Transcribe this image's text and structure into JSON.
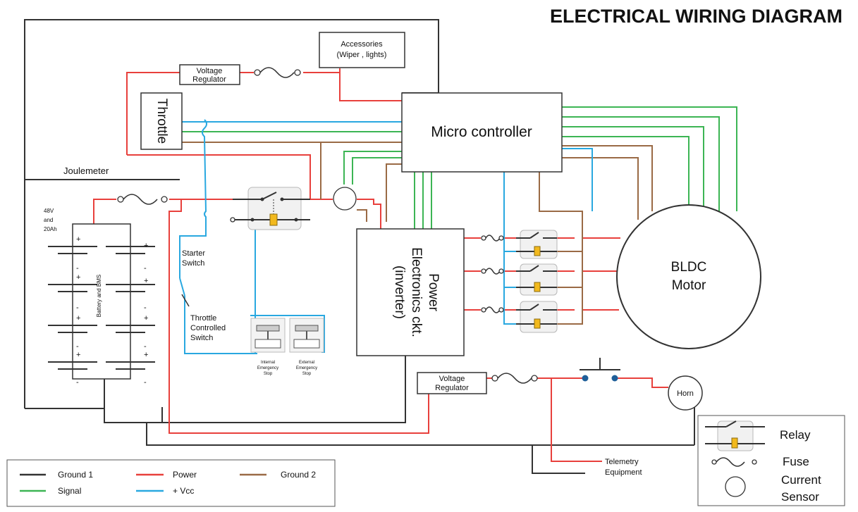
{
  "title": "ELECTRICAL WIRING DIAGRAM",
  "colors": {
    "ground1": "#333333",
    "power": "#e8403c",
    "ground2": "#9a6a45",
    "signal": "#3cb554",
    "vcc": "#29a8e0",
    "coil": "#f2b91d"
  },
  "components": {
    "accessories": [
      "Accessories",
      "(Wiper , lights)"
    ],
    "voltage_regulator_top": [
      "Voltage",
      "Regulator"
    ],
    "throttle": "Throttle",
    "microcontroller": "Micro controller",
    "joulemeter": "Joulemeter",
    "battery_spec": [
      "48V",
      "and",
      "20Ah"
    ],
    "battery_label": "Battery and BMS",
    "starter_switch": [
      "Starter",
      "Switch"
    ],
    "throttle_switch": [
      "Throttle",
      "Controlled",
      "Switch"
    ],
    "internal_stop": [
      "Internal",
      "Emergency",
      "Stop"
    ],
    "external_stop": [
      "External",
      "Emergency",
      "Stop"
    ],
    "power_electronics": [
      "Power",
      "Electronics ckt.",
      "(inverter)"
    ],
    "bldc": [
      "BLDC",
      "Motor"
    ],
    "voltage_regulator_bottom": [
      "Voltage",
      "Regulator"
    ],
    "horn": "Horn",
    "telemetry": [
      "Telemetry",
      "Equipment"
    ]
  },
  "legend": {
    "ground1": "Ground 1",
    "power": "Power",
    "ground2": "Ground 2",
    "signal": "Signal",
    "vcc": "+ Vcc"
  },
  "symbol_legend": {
    "relay": "Relay",
    "fuse": "Fuse",
    "current_sensor": [
      "Current",
      "Sensor"
    ]
  }
}
